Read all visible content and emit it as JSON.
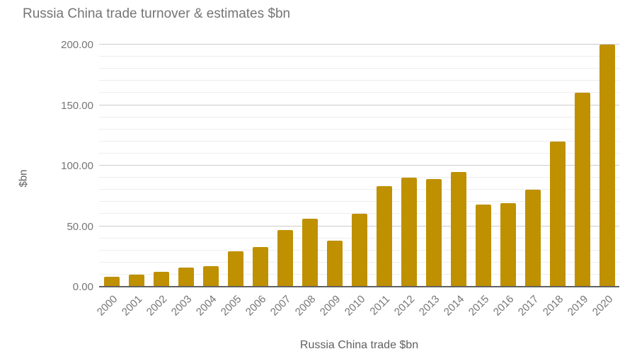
{
  "chart_data": {
    "type": "bar",
    "title": "Russia China trade turnover & estimates $bn",
    "xlabel": "Russia China trade $bn",
    "ylabel": "$bn",
    "categories": [
      "2000",
      "2001",
      "2002",
      "2003",
      "2004",
      "2005",
      "2006",
      "2007",
      "2008",
      "2009",
      "2010",
      "2011",
      "2012",
      "2013",
      "2014",
      "2015",
      "2016",
      "2017",
      "2018",
      "2019",
      "2020"
    ],
    "values": [
      8,
      10,
      12,
      16,
      17,
      29,
      33,
      47,
      56,
      38,
      60,
      83,
      90,
      89,
      95,
      68,
      69,
      80,
      120,
      160,
      200
    ],
    "ylim": [
      0,
      200
    ],
    "y_major_step": 50,
    "y_minor_step": 10,
    "y_tick_values": [
      0,
      50,
      100,
      150,
      200
    ],
    "y_tick_labels": [
      "0.00",
      "50.00",
      "100.00",
      "150.00",
      "200.00"
    ],
    "grid": true,
    "legend_position": "none"
  },
  "colors": {
    "background": "#ffffff",
    "bar": "#BF9000",
    "title_text": "#757575",
    "tick_text": "#757575",
    "axis_title_text": "#616161",
    "minor_gridline": "#ededed",
    "major_gridline": "#cccccc",
    "axis_line": "#616161"
  }
}
